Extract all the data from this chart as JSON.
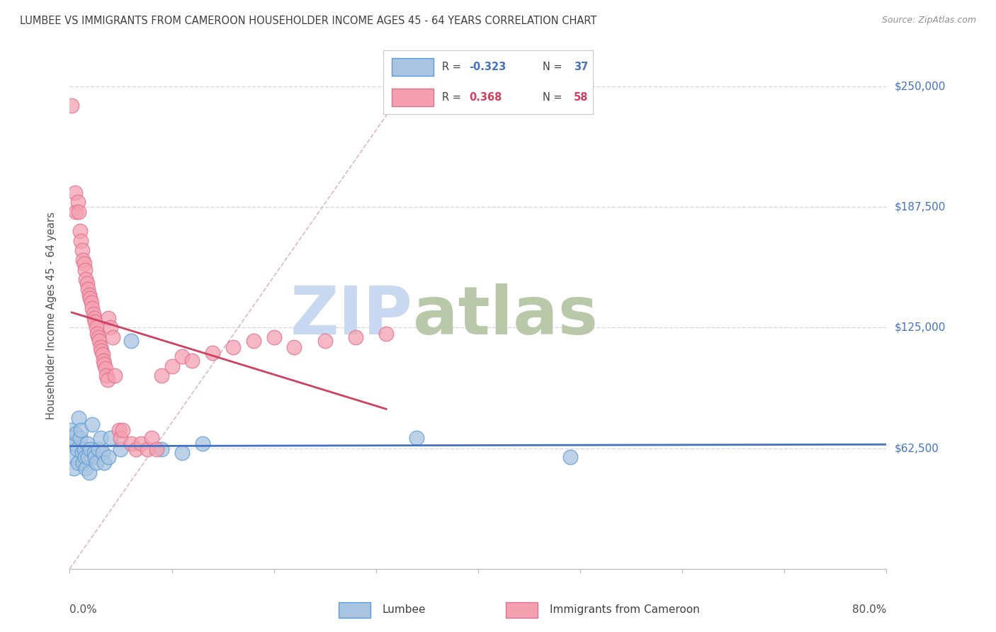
{
  "title": "LUMBEE VS IMMIGRANTS FROM CAMEROON HOUSEHOLDER INCOME AGES 45 - 64 YEARS CORRELATION CHART",
  "source": "Source: ZipAtlas.com",
  "ylabel": "Householder Income Ages 45 - 64 years",
  "yticks": [
    0,
    62500,
    125000,
    187500,
    250000
  ],
  "ytick_labels": [
    "",
    "$62,500",
    "$125,000",
    "$187,500",
    "$250,000"
  ],
  "legend_lumbee_R": "-0.323",
  "legend_lumbee_N": "37",
  "legend_cam_R": "0.368",
  "legend_cam_N": "58",
  "lumbee_face_color": "#a8c4e0",
  "cameroon_face_color": "#f4a0b0",
  "lumbee_edge_color": "#5b9bd5",
  "cameroon_edge_color": "#e07090",
  "lumbee_line_color": "#4472c4",
  "cameroon_line_color": "#d04060",
  "diagonal_color": "#e0b0b8",
  "grid_color": "#d8d8d8",
  "watermark_zip_color": "#c8d8f0",
  "watermark_atlas_color": "#b0c0a0",
  "title_color": "#404040",
  "right_label_color": "#4472c4",
  "lumbee_points": [
    [
      0.001,
      72000
    ],
    [
      0.002,
      68000
    ],
    [
      0.003,
      58000
    ],
    [
      0.004,
      52000
    ],
    [
      0.005,
      65000
    ],
    [
      0.006,
      70000
    ],
    [
      0.007,
      62000
    ],
    [
      0.008,
      55000
    ],
    [
      0.009,
      78000
    ],
    [
      0.01,
      68000
    ],
    [
      0.011,
      72000
    ],
    [
      0.012,
      60000
    ],
    [
      0.013,
      55000
    ],
    [
      0.014,
      62000
    ],
    [
      0.015,
      58000
    ],
    [
      0.016,
      52000
    ],
    [
      0.017,
      65000
    ],
    [
      0.018,
      58000
    ],
    [
      0.019,
      50000
    ],
    [
      0.02,
      62000
    ],
    [
      0.022,
      75000
    ],
    [
      0.024,
      60000
    ],
    [
      0.025,
      58000
    ],
    [
      0.026,
      55000
    ],
    [
      0.028,
      62000
    ],
    [
      0.03,
      68000
    ],
    [
      0.032,
      60000
    ],
    [
      0.034,
      55000
    ],
    [
      0.038,
      58000
    ],
    [
      0.04,
      68000
    ],
    [
      0.05,
      62000
    ],
    [
      0.06,
      118000
    ],
    [
      0.09,
      62000
    ],
    [
      0.11,
      60000
    ],
    [
      0.13,
      65000
    ],
    [
      0.34,
      68000
    ],
    [
      0.49,
      58000
    ]
  ],
  "cameroon_points": [
    [
      0.002,
      240000
    ],
    [
      0.005,
      195000
    ],
    [
      0.006,
      185000
    ],
    [
      0.008,
      190000
    ],
    [
      0.009,
      185000
    ],
    [
      0.01,
      175000
    ],
    [
      0.011,
      170000
    ],
    [
      0.012,
      165000
    ],
    [
      0.013,
      160000
    ],
    [
      0.014,
      158000
    ],
    [
      0.015,
      155000
    ],
    [
      0.016,
      150000
    ],
    [
      0.017,
      148000
    ],
    [
      0.018,
      145000
    ],
    [
      0.019,
      142000
    ],
    [
      0.02,
      140000
    ],
    [
      0.021,
      138000
    ],
    [
      0.022,
      135000
    ],
    [
      0.023,
      132000
    ],
    [
      0.024,
      130000
    ],
    [
      0.025,
      128000
    ],
    [
      0.026,
      125000
    ],
    [
      0.027,
      122000
    ],
    [
      0.028,
      120000
    ],
    [
      0.029,
      118000
    ],
    [
      0.03,
      115000
    ],
    [
      0.031,
      113000
    ],
    [
      0.032,
      111000
    ],
    [
      0.033,
      108000
    ],
    [
      0.034,
      106000
    ],
    [
      0.035,
      104000
    ],
    [
      0.036,
      100000
    ],
    [
      0.037,
      98000
    ],
    [
      0.038,
      130000
    ],
    [
      0.04,
      125000
    ],
    [
      0.042,
      120000
    ],
    [
      0.044,
      100000
    ],
    [
      0.048,
      72000
    ],
    [
      0.05,
      68000
    ],
    [
      0.052,
      72000
    ],
    [
      0.06,
      65000
    ],
    [
      0.065,
      62000
    ],
    [
      0.07,
      65000
    ],
    [
      0.076,
      62000
    ],
    [
      0.08,
      68000
    ],
    [
      0.085,
      62000
    ],
    [
      0.09,
      100000
    ],
    [
      0.1,
      105000
    ],
    [
      0.11,
      110000
    ],
    [
      0.12,
      108000
    ],
    [
      0.14,
      112000
    ],
    [
      0.16,
      115000
    ],
    [
      0.18,
      118000
    ],
    [
      0.2,
      120000
    ],
    [
      0.22,
      115000
    ],
    [
      0.25,
      118000
    ],
    [
      0.28,
      120000
    ],
    [
      0.31,
      122000
    ]
  ]
}
